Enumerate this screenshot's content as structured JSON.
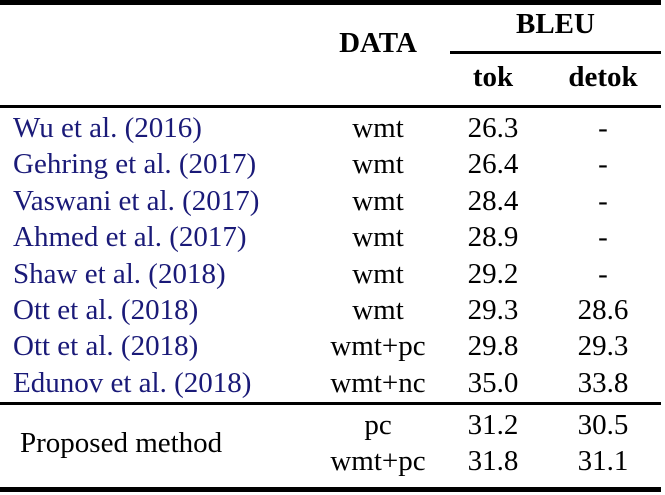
{
  "header": {
    "data": "DATA",
    "bleu": "BLEU",
    "tok": "tok",
    "detok": "detok"
  },
  "rows": [
    {
      "method": "Wu et al. (2016)",
      "data": "wmt",
      "tok": "26.3",
      "detok": "-"
    },
    {
      "method": "Gehring et al. (2017)",
      "data": "wmt",
      "tok": "26.4",
      "detok": "-"
    },
    {
      "method": "Vaswani et al. (2017)",
      "data": "wmt",
      "tok": "28.4",
      "detok": "-"
    },
    {
      "method": "Ahmed et al. (2017)",
      "data": "wmt",
      "tok": "28.9",
      "detok": "-"
    },
    {
      "method": "Shaw et al. (2018)",
      "data": "wmt",
      "tok": "29.2",
      "detok": "-"
    },
    {
      "method": "Ott et al. (2018)",
      "data": "wmt",
      "tok": "29.3",
      "detok": "28.6"
    },
    {
      "method": "Ott et al. (2018)",
      "data": "wmt+pc",
      "tok": "29.8",
      "detok": "29.3"
    },
    {
      "method": "Edunov et al. (2018)",
      "data": "wmt+nc",
      "tok": "35.0",
      "detok": "33.8"
    }
  ],
  "proposed": {
    "label": "Proposed method",
    "rows": [
      {
        "data": "pc",
        "tok": "31.2",
        "detok": "30.5"
      },
      {
        "data": "wmt+pc",
        "tok": "31.8",
        "detok": "31.1"
      }
    ]
  },
  "colors": {
    "citation_blue": "#1a1a78",
    "text_black": "#000000",
    "rule_black": "#000000"
  }
}
